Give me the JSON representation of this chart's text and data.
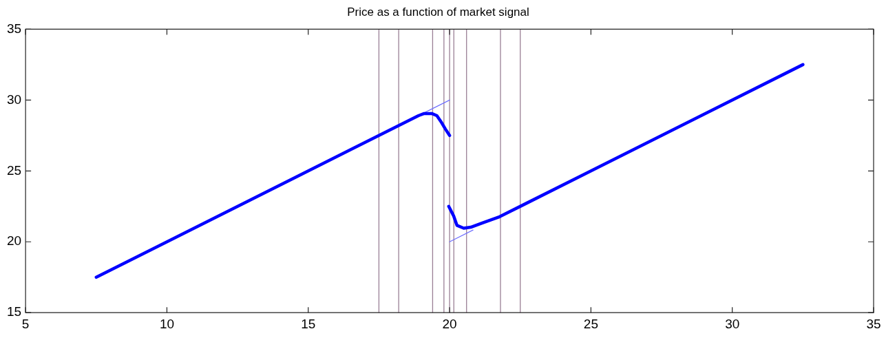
{
  "chart_data": {
    "type": "line",
    "title": "Price as a function of market signal",
    "series": [
      {
        "color": "#0000ff",
        "x": [
          7.5,
          18.9,
          19.1,
          19.37,
          19.55,
          19.72,
          19.85,
          20.0
        ],
        "values": [
          17.5,
          28.9,
          29.05,
          29.05,
          28.9,
          28.4,
          27.96,
          27.5
        ]
      },
      {
        "color": "#0000ff",
        "x": [
          19.97,
          20.14,
          20.26,
          20.5,
          20.75,
          21.16,
          21.77,
          32.5
        ],
        "values": [
          22.5,
          21.84,
          21.16,
          20.96,
          21.03,
          21.33,
          21.77,
          32.5
        ]
      },
      {
        "color": "#6f6fff",
        "x": [
          19.1,
          20.0
        ],
        "values": [
          29.1,
          30.0
        ]
      },
      {
        "color": "#6f6fff",
        "x": [
          20.0,
          20.83
        ],
        "values": [
          20.0,
          20.83
        ]
      }
    ],
    "xlim": [
      5,
      35
    ],
    "xticks": [
      5,
      10,
      15,
      20,
      25,
      30,
      35
    ],
    "ylim": [
      15,
      35
    ],
    "yticks": [
      15,
      20,
      25,
      30,
      35
    ],
    "grid": false,
    "legend": false,
    "marker": "none",
    "line_style": "solid",
    "ref_lines": [
      {
        "axis": "x",
        "value": 17.5,
        "color": "#9a7f95"
      },
      {
        "axis": "x",
        "value": 18.2,
        "color": "#9a7f95"
      },
      {
        "axis": "x",
        "value": 19.4,
        "color": "#9a7f95"
      },
      {
        "axis": "x",
        "value": 19.8,
        "color": "#9a7f95"
      },
      {
        "axis": "x",
        "value": 20.0,
        "color": "#9a7f95"
      },
      {
        "axis": "x",
        "value": 20.15,
        "color": "#9a7f95"
      },
      {
        "axis": "x",
        "value": 20.6,
        "color": "#9a7f95"
      },
      {
        "axis": "x",
        "value": 21.8,
        "color": "#9a7f95"
      },
      {
        "axis": "x",
        "value": 22.5,
        "color": "#9a7f95"
      }
    ]
  }
}
